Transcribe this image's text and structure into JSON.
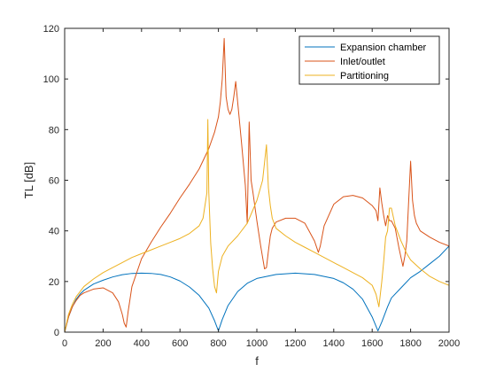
{
  "chart_data": {
    "type": "line",
    "title": "",
    "xlabel": "f",
    "ylabel": "TL [dB]",
    "xlim": [
      0,
      2000
    ],
    "ylim": [
      0,
      120
    ],
    "xticks": [
      0,
      200,
      400,
      600,
      800,
      1000,
      1200,
      1400,
      1600,
      1800,
      2000
    ],
    "yticks": [
      0,
      20,
      40,
      60,
      80,
      100,
      120
    ],
    "grid": false,
    "legend_position": "top-right",
    "series": [
      {
        "name": "Expansion chamber",
        "color": "#0072BD",
        "x": [
          0,
          20,
          40,
          60,
          80,
          100,
          150,
          200,
          250,
          300,
          350,
          400,
          450,
          500,
          550,
          600,
          650,
          700,
          750,
          780,
          800,
          820,
          850,
          900,
          950,
          1000,
          1100,
          1200,
          1300,
          1400,
          1450,
          1500,
          1550,
          1600,
          1630,
          1650,
          1680,
          1700,
          1750,
          1800,
          1850,
          1900,
          1950,
          2000
        ],
        "y": [
          0,
          6,
          10,
          13,
          15,
          16.5,
          19,
          20.5,
          21.8,
          22.7,
          23.2,
          23.3,
          23.2,
          22.8,
          21.8,
          20.2,
          17.8,
          14.5,
          9.5,
          4.5,
          0.5,
          5,
          10.5,
          16,
          19.3,
          21.2,
          22.8,
          23.3,
          22.8,
          21.2,
          19.5,
          17,
          13,
          6,
          0.5,
          4,
          10,
          13.5,
          17.5,
          21.5,
          24,
          27,
          30,
          34
        ]
      },
      {
        "name": "Inlet/outlet",
        "color": "#D95319",
        "x": [
          0,
          20,
          40,
          60,
          80,
          100,
          150,
          200,
          250,
          280,
          300,
          310,
          320,
          330,
          350,
          400,
          450,
          500,
          550,
          600,
          650,
          700,
          750,
          780,
          800,
          810,
          820,
          830,
          840,
          850,
          860,
          870,
          880,
          890,
          900,
          920,
          940,
          950,
          960,
          970,
          980,
          1000,
          1020,
          1040,
          1050,
          1060,
          1070,
          1080,
          1100,
          1150,
          1200,
          1250,
          1300,
          1320,
          1330,
          1350,
          1400,
          1450,
          1500,
          1550,
          1600,
          1620,
          1630,
          1640,
          1650,
          1660,
          1670,
          1680,
          1690,
          1700,
          1720,
          1740,
          1760,
          1770,
          1780,
          1790,
          1800,
          1810,
          1820,
          1830,
          1850,
          1900,
          1950,
          2000
        ],
        "y": [
          0,
          6,
          10,
          12.5,
          14.5,
          15.5,
          17,
          17.5,
          15.5,
          12,
          7,
          3.5,
          2,
          8,
          18,
          29,
          35.5,
          41.5,
          47,
          53,
          58.5,
          64.5,
          72.5,
          79,
          85,
          91,
          100,
          116,
          93,
          88,
          86,
          88,
          93,
          99,
          91,
          75,
          58,
          43,
          83,
          60,
          55,
          44,
          34,
          25,
          25.5,
          32,
          38,
          41,
          43.5,
          45,
          45,
          43,
          36,
          31.5,
          34,
          42,
          50.5,
          53.5,
          54,
          53,
          50,
          48,
          44,
          57,
          51,
          46,
          42,
          46,
          44,
          44,
          41,
          33,
          26,
          30,
          36,
          52,
          67.5,
          52,
          46,
          43,
          40,
          37.5,
          35.5,
          34
        ]
      },
      {
        "name": "Partitioning",
        "color": "#EDB120",
        "x": [
          0,
          20,
          40,
          60,
          80,
          100,
          150,
          200,
          250,
          300,
          350,
          400,
          450,
          500,
          550,
          600,
          650,
          700,
          720,
          740,
          745,
          750,
          760,
          770,
          780,
          790,
          800,
          820,
          850,
          900,
          950,
          1000,
          1030,
          1050,
          1060,
          1070,
          1080,
          1100,
          1150,
          1200,
          1250,
          1300,
          1350,
          1400,
          1450,
          1500,
          1550,
          1600,
          1620,
          1635,
          1650,
          1660,
          1670,
          1680,
          1690,
          1700,
          1720,
          1750,
          1780,
          1800,
          1850,
          1900,
          1950,
          2000
        ],
        "y": [
          0,
          7,
          11,
          14,
          16,
          18,
          21,
          23.5,
          25.5,
          27.5,
          29.5,
          31,
          32.5,
          34,
          35.5,
          37,
          39,
          42,
          45,
          55,
          84,
          55,
          35,
          25,
          18,
          15.5,
          24,
          30,
          34,
          38,
          43,
          52,
          60,
          74,
          57,
          50,
          45,
          41,
          38,
          35.5,
          33.5,
          31.5,
          29.5,
          27.5,
          25.5,
          23.5,
          21.5,
          18.5,
          15,
          10,
          20,
          28,
          37.5,
          40,
          49,
          49,
          42,
          36,
          31,
          28.5,
          25,
          22,
          20,
          18.5
        ]
      }
    ]
  }
}
